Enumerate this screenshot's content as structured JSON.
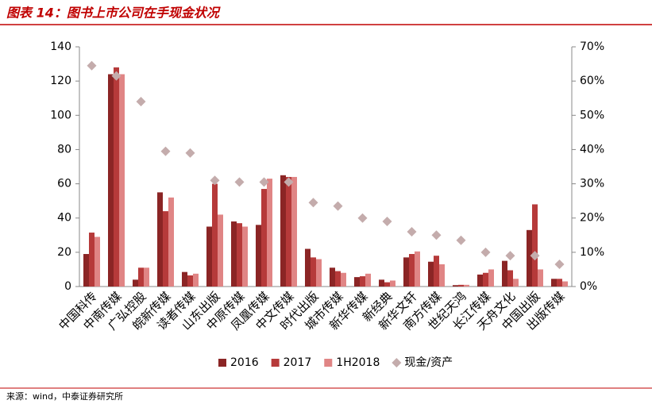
{
  "chart_data": {
    "type": "bar",
    "title": "图表 14：图书上市公司在手现金状况",
    "source": "来源：wind，中泰证券研究所",
    "categories": [
      "中国科传",
      "中南传媒",
      "广弘控股",
      "皖新传媒",
      "读者传媒",
      "山东出版",
      "中原传媒",
      "凤凰传媒",
      "中文传媒",
      "时代出版",
      "城市传媒",
      "新华传媒",
      "新经典",
      "新华文轩",
      "南方传媒",
      "世纪天鸿",
      "长江传媒",
      "天舟文化",
      "中国出版",
      "出版传媒"
    ],
    "series": [
      {
        "name": "2016",
        "color": "#8b2525",
        "values": [
          19,
          124,
          4,
          55,
          8.5,
          35,
          38,
          36,
          65,
          22,
          11,
          5.5,
          4,
          17,
          14.5,
          0.8,
          7,
          15,
          33,
          4.5
        ]
      },
      {
        "name": "2017",
        "color": "#b63a3a",
        "values": [
          31.5,
          128,
          11,
          44,
          6.5,
          60,
          37,
          57,
          64,
          17,
          9,
          6,
          2.5,
          19,
          18,
          1,
          8,
          9.5,
          48,
          4.5
        ]
      },
      {
        "name": "1H2018",
        "color": "#e08585",
        "values": [
          29,
          124,
          11,
          52,
          7.5,
          42,
          35,
          63,
          64,
          16,
          8,
          7.5,
          3.5,
          20.5,
          13,
          1,
          10,
          4.5,
          10,
          3
        ]
      },
      {
        "name": "现金/资产",
        "color": "#c4acac",
        "type": "scatter",
        "axis": "y2",
        "values": [
          64.5,
          61.5,
          54,
          39.5,
          39,
          31,
          30.5,
          30.5,
          30.5,
          24.5,
          23.5,
          20,
          19,
          16,
          15,
          13.5,
          10,
          9,
          9,
          6.5
        ]
      }
    ],
    "ylim": [
      0,
      140
    ],
    "yticks": [
      0,
      20,
      40,
      60,
      80,
      100,
      120,
      140
    ],
    "y2lim": [
      0,
      70
    ],
    "y2ticks": [
      {
        "value": 0,
        "label": "0%"
      },
      {
        "value": 10,
        "label": "10%"
      },
      {
        "value": 20,
        "label": "20%"
      },
      {
        "value": 30,
        "label": "30%"
      },
      {
        "value": 40,
        "label": "40%"
      },
      {
        "value": 50,
        "label": "50%"
      },
      {
        "value": 60,
        "label": "60%"
      },
      {
        "value": 70,
        "label": "70%"
      }
    ],
    "grid": false
  }
}
